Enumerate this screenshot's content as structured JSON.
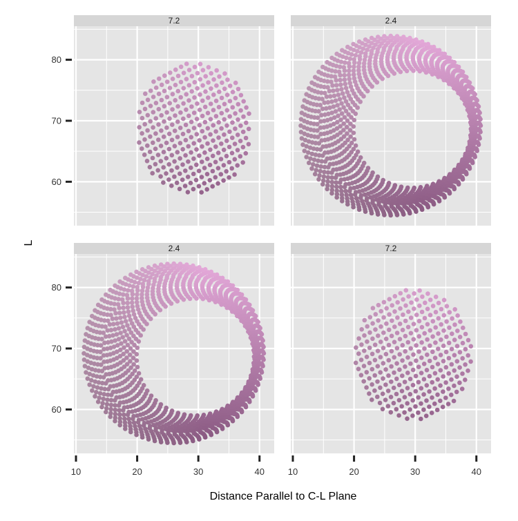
{
  "chart_data": {
    "type": "scatter",
    "title": "",
    "xlabel": "Distance Parallel to C-L Plane",
    "ylabel": "L",
    "xlim": [
      9.66,
      42.4
    ],
    "ylim": [
      52.8,
      85.5
    ],
    "x_ticks": [
      10,
      20,
      30,
      40
    ],
    "y_ticks": [
      60,
      70,
      80
    ],
    "grid": true,
    "legend": "none",
    "point_spacing": 1.0,
    "facets": [
      {
        "label": "7.2",
        "row": 0,
        "col": 0,
        "shape": "disc",
        "center": [
          29.3,
          68.8
        ],
        "radius": [
          9.4,
          10.9
        ]
      },
      {
        "label": "2.4",
        "row": 0,
        "col": 1,
        "shape": "crescent",
        "outer_center": [
          26.0,
          69.2
        ],
        "outer_radius": 14.7,
        "inner_center": [
          29.5,
          68.6
        ],
        "inner_radius": 9.6
      },
      {
        "label": "2.4",
        "row": 1,
        "col": 0,
        "shape": "crescent",
        "outer_center": [
          26.0,
          69.2
        ],
        "outer_radius": 14.7,
        "inner_center": [
          29.5,
          68.6
        ],
        "inner_radius": 9.6
      },
      {
        "label": "7.2",
        "row": 1,
        "col": 1,
        "shape": "disc",
        "center": [
          29.7,
          69.0
        ],
        "radius": [
          9.5,
          10.9
        ]
      }
    ],
    "colors": {
      "top": "#e6aadb",
      "left": "#a8929f",
      "bottom": "#8a5a82",
      "panel": "#e5e5e5",
      "strip": "#d6d6d6",
      "grid": "#ffffff"
    }
  }
}
